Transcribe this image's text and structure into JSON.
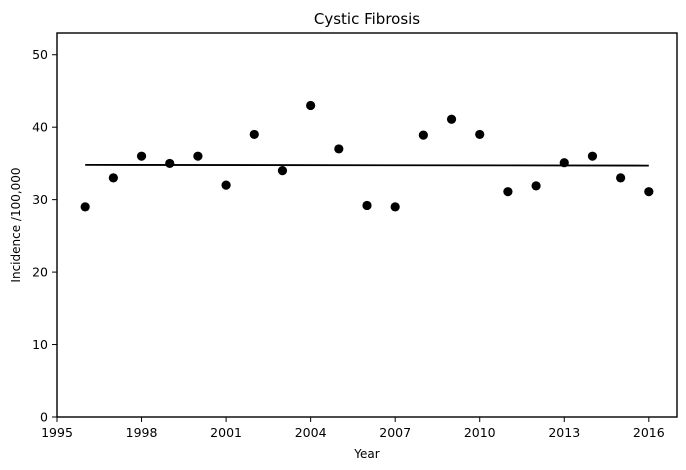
{
  "chart_data": {
    "type": "scatter",
    "title": "Cystic Fibrosis",
    "xlabel": "Year",
    "ylabel": "Incidence /100,000",
    "xlim": [
      1995,
      2017
    ],
    "ylim": [
      0,
      53
    ],
    "x_ticks": [
      1995,
      1998,
      2001,
      2004,
      2007,
      2010,
      2013,
      2016
    ],
    "y_ticks": [
      0,
      10,
      20,
      30,
      40,
      50
    ],
    "grid": false,
    "legend": "none",
    "series": [
      {
        "kind": "scatter",
        "color": "#000000",
        "x": [
          1996,
          1997,
          1998,
          1999,
          2000,
          2001,
          2002,
          2003,
          2004,
          2005,
          2006,
          2007,
          2008,
          2009,
          2010,
          2011,
          2012,
          2013,
          2014,
          2015,
          2016
        ],
        "y": [
          29,
          33,
          36,
          35,
          36,
          32,
          39,
          34,
          43,
          37,
          29.2,
          29,
          38.9,
          41.1,
          39,
          31.1,
          31.9,
          35.1,
          36,
          33,
          31.1
        ]
      },
      {
        "kind": "line",
        "color": "#000000",
        "x": [
          1996,
          2016
        ],
        "y": [
          34.8,
          34.7
        ]
      }
    ]
  }
}
